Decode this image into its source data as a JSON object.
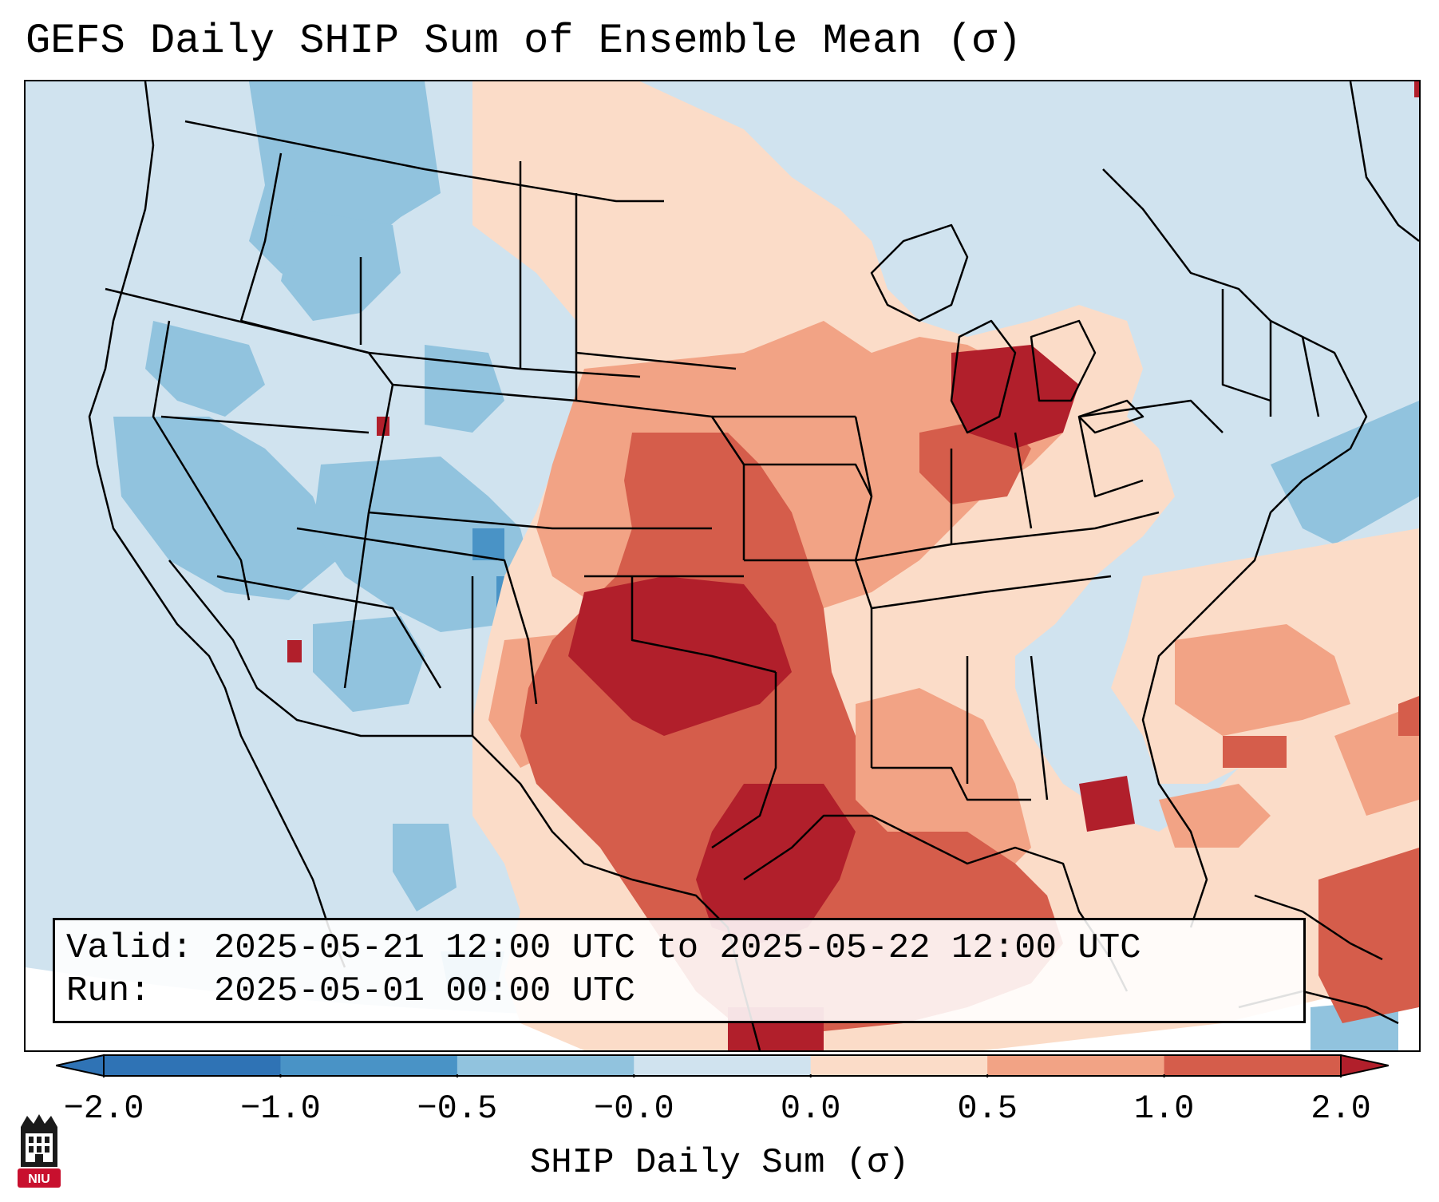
{
  "title": "GEFS Daily SHIP Sum of Ensemble Mean (σ)",
  "info": {
    "valid_label": "Valid:",
    "valid_value": "2025-05-21 12:00 UTC to 2025-05-22 12:00 UTC",
    "run_label": "Run:",
    "run_value": "2025-05-01 00:00 UTC"
  },
  "colorbar": {
    "label": "SHIP Daily Sum (σ)",
    "ticks": [
      "−2.0",
      "−1.0",
      "−0.5",
      "−0.0",
      "0.0",
      "0.5",
      "1.0",
      "2.0"
    ],
    "colors": [
      "#2f73b5",
      "#4993c6",
      "#91c3de",
      "#d0e3ef",
      "#fbdcc8",
      "#f2a385",
      "#d55d4b",
      "#b11f2b"
    ],
    "extend": "both"
  },
  "palette": {
    "ocean": "#d0e3ef",
    "neg_weak": "#91c3de",
    "neg_mid": "#4993c6",
    "pos_weak": "#fbdcc8",
    "pos_mid": "#f2a385",
    "pos_strong": "#d55d4b",
    "pos_max": "#b11f2b",
    "outline": "#000000"
  },
  "logo": {
    "text": "NIU",
    "name": "niu-logo-icon"
  }
}
